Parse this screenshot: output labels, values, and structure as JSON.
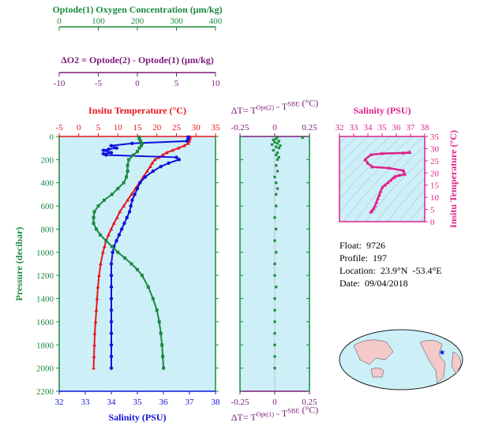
{
  "colors": {
    "oxygen": "#1a8a3c",
    "temperature": "#e8141c",
    "salinity": "#1010dd",
    "delta_o2": "#7a1a7a",
    "ts_pink": "#e0208a",
    "panel_bg": "#cdeff8",
    "dt_green": "#1a8a3c"
  },
  "float_info": {
    "float": "Float:  9726",
    "profile": "Profile:  197",
    "location": "Location:  23.9°N  -53.4°E",
    "date": "Date:  09/04/2018"
  },
  "chart_data": [
    {
      "type": "line",
      "panel": "main-profile",
      "ylabel": "Pressure (decibar)",
      "ylim": [
        2200,
        0
      ],
      "yticks": [
        0,
        200,
        400,
        600,
        800,
        1000,
        1200,
        1400,
        1600,
        1800,
        2000,
        2200
      ],
      "axes": {
        "oxygen": {
          "label": "Optode(1) Oxygen Concentration (μm/kg)",
          "range": [
            0,
            400
          ],
          "ticks": [
            0,
            100,
            200,
            300,
            400
          ]
        },
        "delta_o2": {
          "label": "ΔO2 = Optode(2) - Optode(1)   (μm/kg)",
          "range": [
            -10,
            10
          ],
          "ticks": [
            -10,
            -5,
            0,
            5,
            10
          ]
        },
        "temperature": {
          "label": "Insitu Temperature (°C)",
          "range": [
            -5,
            35
          ],
          "ticks": [
            -5,
            0,
            5,
            10,
            15,
            20,
            25,
            30,
            35
          ]
        },
        "salinity": {
          "label": "Salinity (PSU)",
          "range": [
            32,
            38
          ],
          "ticks": [
            32,
            33,
            34,
            35,
            36,
            37,
            38
          ]
        }
      },
      "series": [
        {
          "name": "Insitu Temperature (°C)",
          "axis": "temperature",
          "pressure": [
            5,
            20,
            40,
            60,
            80,
            100,
            120,
            140,
            160,
            180,
            200,
            230,
            260,
            300,
            350,
            400,
            450,
            500,
            550,
            600,
            650,
            700,
            750,
            800,
            850,
            900,
            950,
            1000,
            1100,
            1200,
            1300,
            1400,
            1500,
            1600,
            1700,
            1800,
            1900,
            2000
          ],
          "values": [
            28.5,
            28.4,
            28.3,
            28.0,
            27.0,
            25.5,
            24.0,
            22.5,
            21.5,
            20.5,
            19.5,
            18.8,
            18.3,
            17.5,
            16.5,
            15.5,
            14.5,
            13.5,
            12.5,
            11.5,
            10.5,
            9.8,
            9.0,
            8.3,
            7.6,
            7.0,
            6.6,
            6.2,
            5.6,
            5.2,
            4.9,
            4.7,
            4.5,
            4.3,
            4.1,
            4.0,
            3.9,
            3.8
          ]
        },
        {
          "name": "Salinity (PSU)",
          "axis": "salinity",
          "pressure": [
            5,
            20,
            40,
            60,
            80,
            100,
            110,
            120,
            140,
            150,
            160,
            180,
            200,
            230,
            260,
            300,
            350,
            400,
            450,
            500,
            550,
            600,
            650,
            700,
            750,
            800,
            850,
            900,
            950,
            1000,
            1100,
            1200,
            1300,
            1400,
            1500,
            1600,
            1700,
            1800,
            1900,
            2000
          ],
          "values": [
            36.95,
            36.95,
            36.9,
            34.8,
            34.0,
            34.2,
            33.9,
            33.7,
            34.0,
            33.7,
            33.8,
            36.5,
            36.6,
            36.2,
            35.9,
            35.6,
            35.3,
            35.1,
            35.0,
            34.9,
            34.8,
            34.75,
            34.7,
            34.6,
            34.5,
            34.4,
            34.3,
            34.2,
            34.1,
            34.05,
            34.0,
            34.0,
            34.0,
            34.0,
            34.0,
            34.0,
            34.0,
            34.0,
            34.0,
            34.0
          ]
        },
        {
          "name": "Optode(1) Oxygen Concentration (μm/kg)",
          "axis": "oxygen",
          "pressure": [
            5,
            20,
            40,
            60,
            80,
            100,
            130,
            160,
            200,
            250,
            300,
            350,
            400,
            450,
            500,
            550,
            600,
            650,
            700,
            750,
            800,
            850,
            900,
            950,
            1000,
            1050,
            1100,
            1150,
            1200,
            1300,
            1400,
            1500,
            1600,
            1700,
            1800,
            1900,
            2000
          ],
          "values": [
            205,
            205,
            208,
            212,
            210,
            205,
            200,
            190,
            178,
            175,
            175,
            172,
            165,
            150,
            135,
            115,
            100,
            90,
            88,
            88,
            95,
            105,
            120,
            135,
            150,
            168,
            185,
            200,
            212,
            228,
            240,
            250,
            256,
            260,
            263,
            265,
            267
          ]
        }
      ]
    },
    {
      "type": "scatter",
      "panel": "delta-t",
      "title": "ΔT= T^{Opt(2)} - T^{SBE} (°C)",
      "xlabel": "ΔT= T^{Opt(1)} - T^{SBE} (°C)",
      "xlim": [
        -0.25,
        0.25
      ],
      "xticks": [
        -0.25,
        0.0,
        0.25
      ],
      "ylim": [
        2200,
        0
      ],
      "series": [
        {
          "name": "ΔT",
          "pressure": [
            5,
            10,
            20,
            30,
            40,
            50,
            60,
            70,
            80,
            90,
            100,
            120,
            140,
            160,
            180,
            200,
            250,
            300,
            350,
            400,
            450,
            500,
            600,
            700,
            800,
            900,
            1000,
            1100,
            1200,
            1300,
            1400,
            1500,
            1600,
            1700,
            1800,
            1900,
            2000
          ],
          "values": [
            0.02,
            0.2,
            0.01,
            -0.01,
            0.03,
            0.0,
            0.02,
            -0.02,
            0.04,
            0.01,
            0.03,
            -0.01,
            0.02,
            0.01,
            0.03,
            0.02,
            0.01,
            0.02,
            0.0,
            0.01,
            0.02,
            0.01,
            0.01,
            0.0,
            0.01,
            0.0,
            0.01,
            0.0,
            0.0,
            0.01,
            0.0,
            0.0,
            0.0,
            0.0,
            0.0,
            0.0,
            0.0
          ]
        }
      ]
    },
    {
      "type": "scatter",
      "panel": "ts-diagram",
      "title": "Salinity (PSU)",
      "ylabel": "Insitu Temperature (°C)",
      "xlim": [
        32,
        38
      ],
      "xticks": [
        32,
        33,
        34,
        35,
        36,
        37,
        38
      ],
      "ylim": [
        0,
        35
      ],
      "yticks": [
        0,
        5,
        10,
        15,
        20,
        25,
        30,
        35
      ],
      "series": [
        {
          "name": "T-S",
          "x": [
            34.2,
            34.3,
            34.4,
            34.5,
            34.6,
            34.7,
            34.8,
            34.9,
            35.0,
            35.2,
            35.4,
            35.6,
            35.8,
            35.9,
            36.2,
            36.6,
            36.5,
            35.5,
            34.3,
            34.0,
            33.8,
            34.2,
            35.0,
            36.5,
            36.9,
            36.95
          ],
          "y": [
            4.0,
            4.5,
            5.5,
            6.5,
            8.0,
            9.5,
            11.0,
            12.5,
            14.0,
            15.0,
            16.0,
            17.0,
            18.0,
            18.5,
            19.0,
            19.5,
            21.0,
            22.0,
            22.5,
            24.0,
            25.5,
            27.5,
            28.0,
            28.2,
            28.4,
            28.5
          ]
        }
      ]
    }
  ]
}
